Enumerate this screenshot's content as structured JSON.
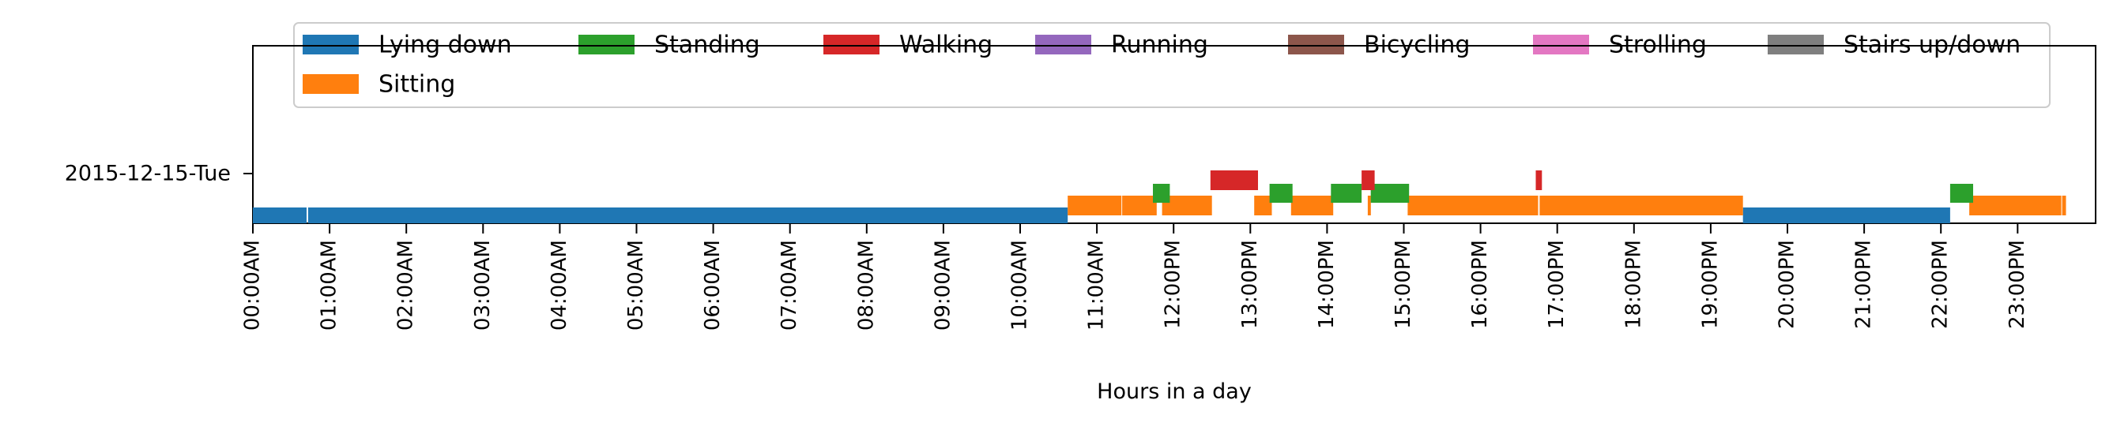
{
  "chart_data": {
    "type": "timeline",
    "xlabel": "Hours in a day",
    "ylabel": "",
    "xlim_hours": [
      0,
      24
    ],
    "grid": false,
    "legend_placement": "top",
    "row_label": "2015-12-15-Tue",
    "x_tick_labels": [
      "00:00AM",
      "01:00AM",
      "02:00AM",
      "03:00AM",
      "04:00AM",
      "05:00AM",
      "06:00AM",
      "07:00AM",
      "08:00AM",
      "09:00AM",
      "10:00AM",
      "11:00AM",
      "12:00PM",
      "13:00PM",
      "14:00PM",
      "15:00PM",
      "16:00PM",
      "17:00PM",
      "18:00PM",
      "19:00PM",
      "20:00PM",
      "21:00PM",
      "22:00PM",
      "23:00PM"
    ],
    "legend": [
      {
        "name": "Lying down",
        "color": "#1f77b4"
      },
      {
        "name": "Standing",
        "color": "#2ca02c"
      },
      {
        "name": "Walking",
        "color": "#d62728"
      },
      {
        "name": "Running",
        "color": "#9467bd"
      },
      {
        "name": "Bicycling",
        "color": "#8c564b"
      },
      {
        "name": "Strolling",
        "color": "#e377c2"
      },
      {
        "name": "Stairs up/down",
        "color": "#7f7f7f"
      },
      {
        "name": "Sitting",
        "color": "#ff7f0e"
      }
    ],
    "series": [
      {
        "name": "Lying down",
        "intervals": [
          [
            0.0,
            0.7
          ],
          [
            0.72,
            10.62
          ],
          [
            19.42,
            22.12
          ]
        ]
      },
      {
        "name": "Sitting",
        "intervals": [
          [
            10.62,
            11.32
          ],
          [
            11.33,
            11.78
          ],
          [
            11.85,
            12.5
          ],
          [
            13.05,
            13.28
          ],
          [
            13.53,
            14.08
          ],
          [
            14.53,
            14.57
          ],
          [
            15.05,
            16.75
          ],
          [
            16.77,
            19.42
          ],
          [
            22.37,
            23.57
          ],
          [
            23.58,
            23.63
          ]
        ]
      },
      {
        "name": "Standing",
        "intervals": [
          [
            11.73,
            11.95
          ],
          [
            13.25,
            13.55
          ],
          [
            14.05,
            14.45
          ],
          [
            14.57,
            15.07
          ],
          [
            22.12,
            22.42
          ]
        ]
      },
      {
        "name": "Walking",
        "intervals": [
          [
            12.48,
            13.1
          ],
          [
            14.45,
            14.62
          ],
          [
            16.72,
            16.8
          ]
        ]
      }
    ]
  }
}
